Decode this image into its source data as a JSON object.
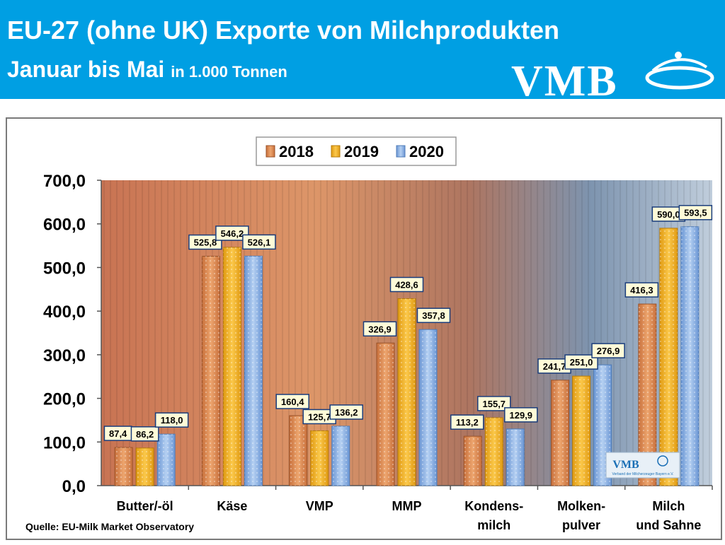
{
  "header": {
    "title_line1": "EU-27 (ohne UK) Exporte von Milchprodukten",
    "title_line2": "Januar bis Mai",
    "unit": "in 1.000 Tonnen",
    "logo_text": "VMB"
  },
  "colors": {
    "header_bg": "#009fe3",
    "series_2018": "#e0915a",
    "series_2019": "#f5b731",
    "series_2020": "#8ab4e8"
  },
  "chart_data": {
    "type": "bar",
    "title": "EU-27 (ohne UK) Exporte von Milchprodukten Januar bis Mai",
    "subtitle": "in 1.000 Tonnen",
    "categories": [
      [
        "Butter/-öl"
      ],
      [
        "Käse"
      ],
      [
        "VMP"
      ],
      [
        "MMP"
      ],
      [
        "Kondens-",
        "milch"
      ],
      [
        "Molken-",
        "pulver"
      ],
      [
        "Milch",
        "und Sahne"
      ]
    ],
    "series": [
      {
        "name": "2018",
        "values": [
          87.4,
          525.8,
          160.4,
          326.9,
          113.2,
          241.7,
          416.3
        ],
        "labels": [
          "87,4",
          "525,8",
          "160,4",
          "326,9",
          "113,2",
          "241,7",
          "416,3"
        ]
      },
      {
        "name": "2019",
        "values": [
          86.2,
          546.2,
          125.7,
          428.6,
          155.7,
          251.0,
          590.0
        ],
        "labels": [
          "86,2",
          "546,2",
          "125,7",
          "428,6",
          "155,7",
          "251,0",
          "590,0"
        ]
      },
      {
        "name": "2020",
        "values": [
          118.0,
          526.1,
          136.2,
          357.8,
          129.9,
          276.9,
          593.5
        ],
        "labels": [
          "118,0",
          "526,1",
          "136,2",
          "357,8",
          "129,9",
          "276,9",
          "593,5"
        ]
      }
    ],
    "ylim": [
      0,
      700
    ],
    "yticks": [
      "0,0",
      "100,0",
      "200,0",
      "300,0",
      "400,0",
      "500,0",
      "600,0",
      "700,0"
    ],
    "legend_position": "top-center",
    "grid": false
  },
  "inner_logo": {
    "text": "VMB",
    "tagline": "Verband der Milcherzeuger Bayern e.V."
  },
  "source": "Quelle: EU-Milk Market Observatory"
}
